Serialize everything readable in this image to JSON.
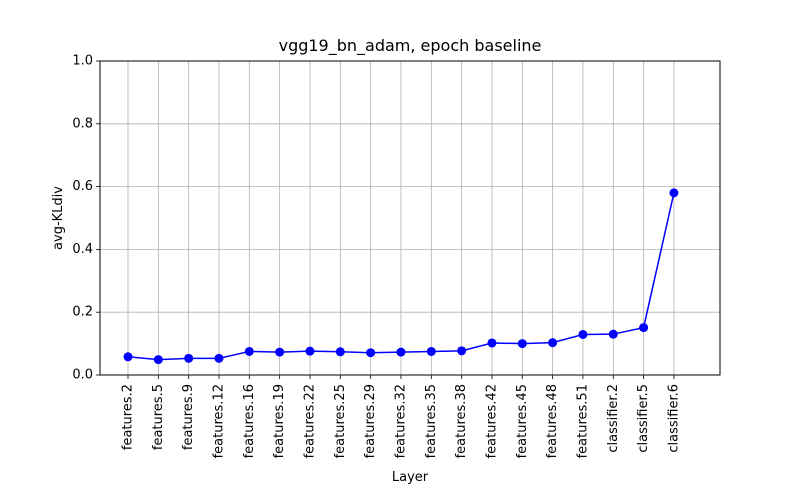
{
  "chart_data": {
    "type": "line",
    "title": "vgg19_bn_adam, epoch baseline",
    "xlabel": "Layer",
    "ylabel": "avg-KLdiv",
    "ylim": [
      0,
      1.0
    ],
    "yticks": [
      "0.0",
      "0.2",
      "0.4",
      "0.6",
      "0.8",
      "1.0"
    ],
    "grid": true,
    "categories": [
      "features.2",
      "features.5",
      "features.9",
      "features.12",
      "features.16",
      "features.19",
      "features.22",
      "features.25",
      "features.29",
      "features.32",
      "features.35",
      "features.38",
      "features.42",
      "features.45",
      "features.48",
      "features.51",
      "classifier.2",
      "classifier.5",
      "classifier.6"
    ],
    "series": [
      {
        "color": "#0000ff",
        "marker": "circle",
        "values": [
          0.058,
          0.049,
          0.053,
          0.053,
          0.075,
          0.073,
          0.076,
          0.074,
          0.071,
          0.073,
          0.075,
          0.077,
          0.102,
          0.1,
          0.103,
          0.129,
          0.13,
          0.151,
          0.58
        ]
      }
    ]
  }
}
